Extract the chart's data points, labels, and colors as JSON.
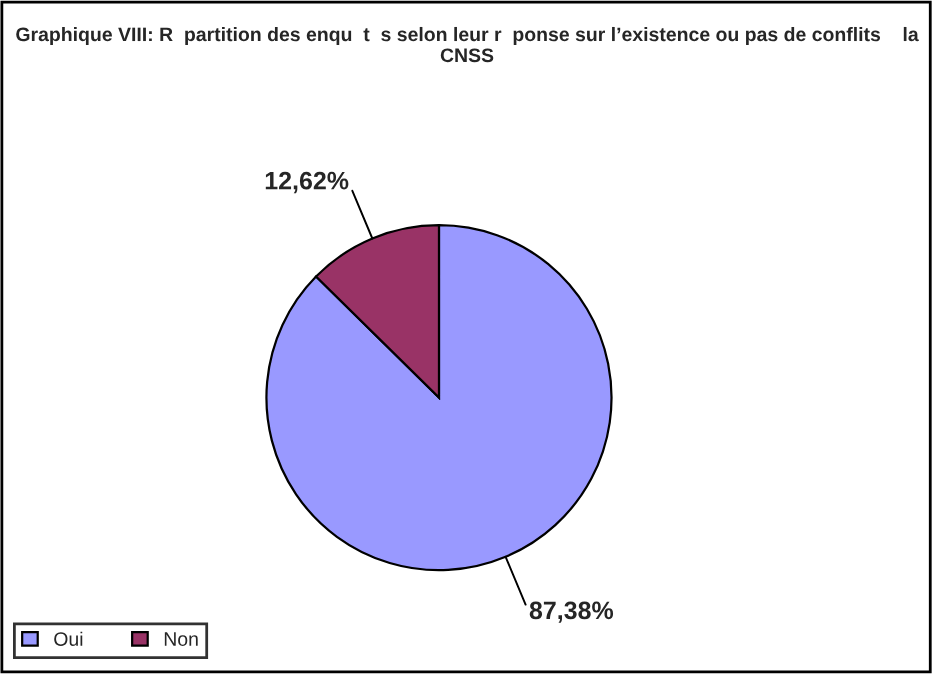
{
  "chart_data": {
    "type": "pie",
    "title": "Graphique VIII: R  partition des enqu  t  s selon leur r  ponse sur l’existence ou pas de conflits    la CNSS",
    "categories": [
      "Oui",
      "Non"
    ],
    "values": [
      87.38,
      12.62
    ],
    "colors": [
      "#9999ff",
      "#993366"
    ],
    "value_labels": [
      "87,38%",
      "12,62%"
    ],
    "legend": "bottom left"
  }
}
